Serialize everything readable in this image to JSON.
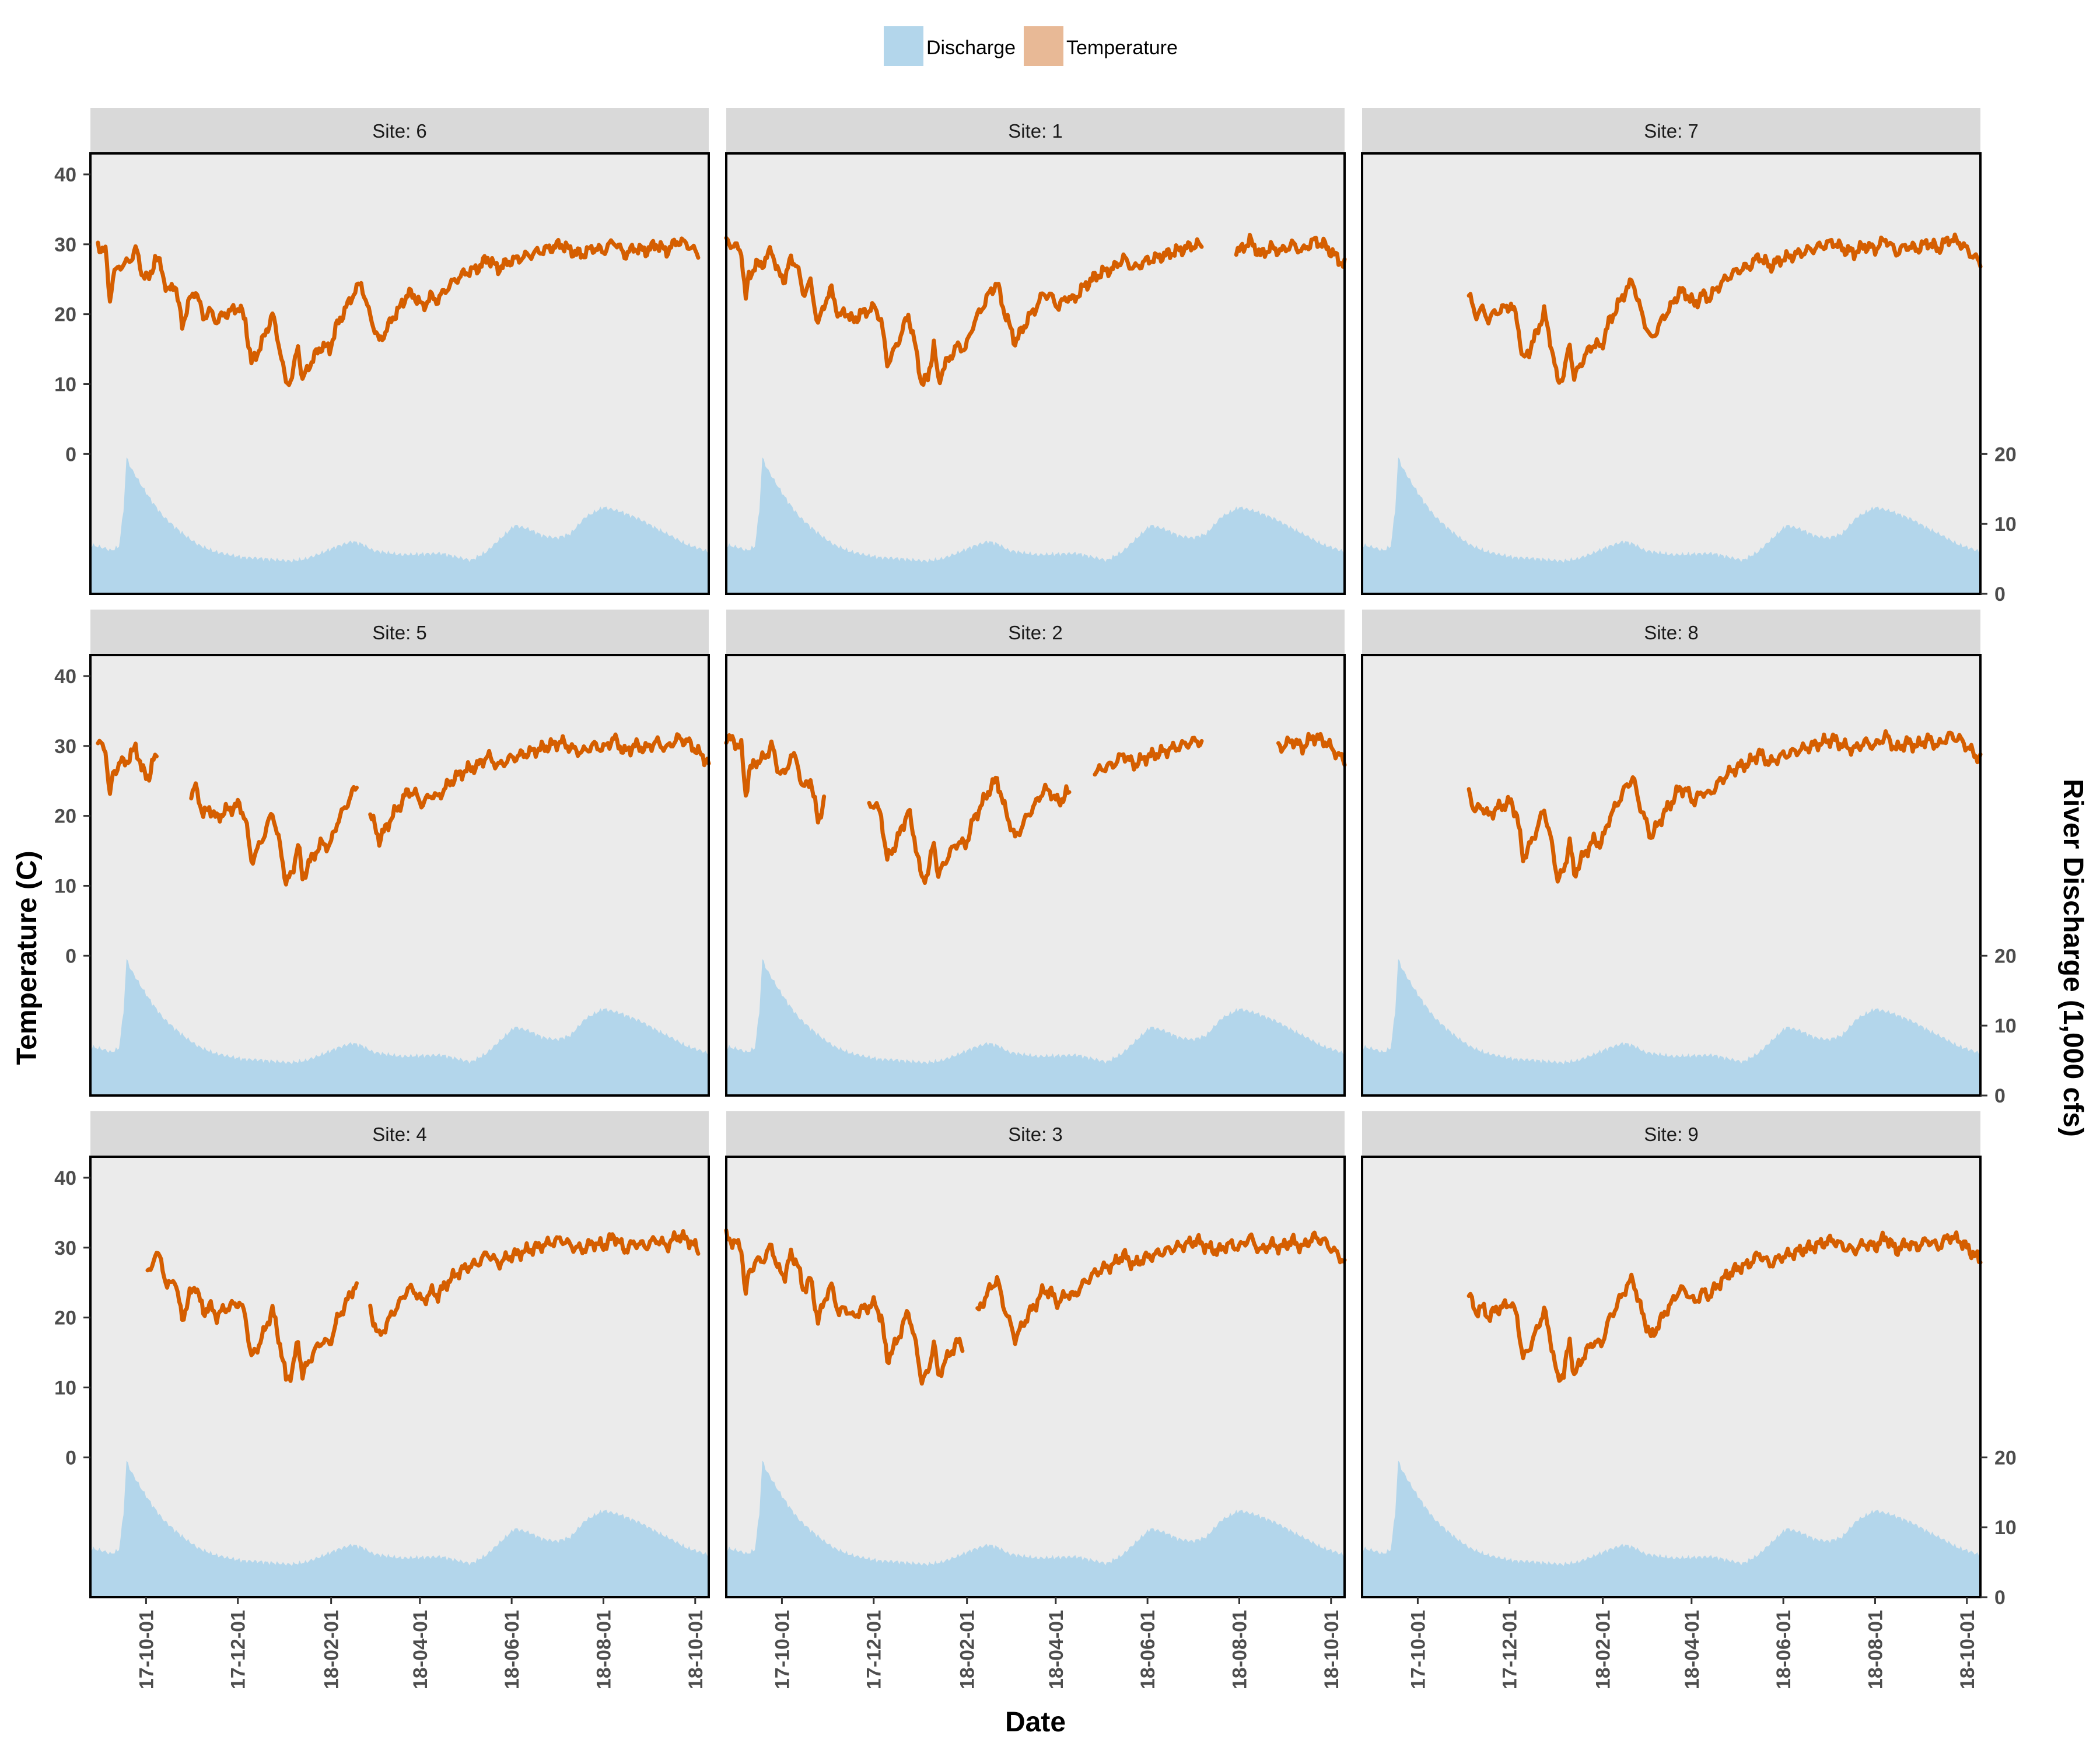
{
  "legend": {
    "items": [
      {
        "label": "Discharge",
        "color": "#b3d6eb"
      },
      {
        "label": "Temperature",
        "color": "#e8b996"
      }
    ]
  },
  "axes": {
    "xlabel": "Date",
    "ylabel_left": "Temperature (C)",
    "ylabel_right": "River Discharge (1,000 cfs)"
  },
  "colors": {
    "panel_bg": "#ebebeb",
    "strip_bg": "#d9d9d9",
    "temperature_line": "#d55e00",
    "discharge_area": "#b3d6eb",
    "frame": "#000000",
    "tick_text": "#4d4d4d"
  },
  "chart_data": {
    "type": "line+area",
    "facet_layout": "3x3",
    "legend_position": "top",
    "grid": false,
    "x_range": [
      "2017-08-25",
      "2018-10-10"
    ],
    "x_ticks": [
      "17-10-01",
      "17-12-01",
      "18-02-01",
      "18-04-01",
      "18-06-01",
      "18-08-01",
      "18-10-01"
    ],
    "temperature_axis": {
      "ticks": [
        0,
        10,
        20,
        30,
        40
      ],
      "ylim": [
        -20,
        43
      ]
    },
    "discharge_axis": {
      "ticks": [
        0,
        10,
        20
      ],
      "note": "shares panel with temperature; 0 cfs aligned at temperature -20, 20 (1,000 cfs) aligned at temperature 0"
    },
    "discharge_series": {
      "name": "Discharge",
      "unit": "1,000 cfs",
      "points": [
        [
          "2017-08-25",
          7.0
        ],
        [
          "2017-09-01",
          6.7
        ],
        [
          "2017-09-08",
          6.2
        ],
        [
          "2017-09-13",
          6.8
        ],
        [
          "2017-09-16",
          12
        ],
        [
          "2017-09-18",
          19.5
        ],
        [
          "2017-09-21",
          18
        ],
        [
          "2017-09-28",
          15.5
        ],
        [
          "2017-10-05",
          13.2
        ],
        [
          "2017-10-12",
          11.2
        ],
        [
          "2017-10-20",
          9.6
        ],
        [
          "2017-10-28",
          8.2
        ],
        [
          "2017-11-05",
          7.0
        ],
        [
          "2017-11-15",
          6.1
        ],
        [
          "2017-11-25",
          5.6
        ],
        [
          "2017-12-05",
          5.2
        ],
        [
          "2017-12-15",
          5.1
        ],
        [
          "2017-12-25",
          4.9
        ],
        [
          "2018-01-05",
          4.7
        ],
        [
          "2018-01-15",
          5.0
        ],
        [
          "2018-01-25",
          5.8
        ],
        [
          "2018-02-05",
          6.8
        ],
        [
          "2018-02-15",
          7.5
        ],
        [
          "2018-02-22",
          7.1
        ],
        [
          "2018-03-01",
          6.2
        ],
        [
          "2018-03-10",
          5.9
        ],
        [
          "2018-03-20",
          5.6
        ],
        [
          "2018-04-01",
          5.7
        ],
        [
          "2018-04-15",
          5.8
        ],
        [
          "2018-04-25",
          5.3
        ],
        [
          "2018-05-05",
          4.8
        ],
        [
          "2018-05-15",
          6.0
        ],
        [
          "2018-05-25",
          8.0
        ],
        [
          "2018-06-03",
          9.8
        ],
        [
          "2018-06-12",
          9.3
        ],
        [
          "2018-06-22",
          8.3
        ],
        [
          "2018-07-01",
          8.0
        ],
        [
          "2018-07-10",
          8.6
        ],
        [
          "2018-07-20",
          11.0
        ],
        [
          "2018-08-01",
          12.4
        ],
        [
          "2018-08-12",
          11.8
        ],
        [
          "2018-08-25",
          10.7
        ],
        [
          "2018-09-05",
          9.4
        ],
        [
          "2018-09-15",
          8.3
        ],
        [
          "2018-09-25",
          7.1
        ],
        [
          "2018-10-05",
          6.4
        ],
        [
          "2018-10-10",
          6.0
        ]
      ]
    },
    "temperature_base": {
      "name": "Temperature",
      "unit": "C",
      "points": [
        [
          "2017-08-25",
          30.5
        ],
        [
          "2017-09-01",
          29.5
        ],
        [
          "2017-09-04",
          29
        ],
        [
          "2017-09-07",
          22
        ],
        [
          "2017-09-09",
          25.5
        ],
        [
          "2017-09-14",
          27
        ],
        [
          "2017-09-20",
          27.5
        ],
        [
          "2017-09-24",
          29.5
        ],
        [
          "2017-09-28",
          26
        ],
        [
          "2017-10-03",
          25
        ],
        [
          "2017-10-07",
          28
        ],
        [
          "2017-10-11",
          27
        ],
        [
          "2017-10-15",
          23
        ],
        [
          "2017-10-20",
          24.5
        ],
        [
          "2017-10-25",
          18.5
        ],
        [
          "2017-10-30",
          22
        ],
        [
          "2017-11-03",
          23.5
        ],
        [
          "2017-11-08",
          19.5
        ],
        [
          "2017-11-12",
          20.5
        ],
        [
          "2017-11-17",
          19
        ],
        [
          "2017-11-22",
          20
        ],
        [
          "2017-11-27",
          20.5
        ],
        [
          "2017-12-02",
          21
        ],
        [
          "2017-12-06",
          19
        ],
        [
          "2017-12-10",
          13
        ],
        [
          "2017-12-14",
          14.5
        ],
        [
          "2017-12-19",
          17
        ],
        [
          "2017-12-24",
          20
        ],
        [
          "2017-12-29",
          15
        ],
        [
          "2018-01-02",
          10
        ],
        [
          "2018-01-06",
          11
        ],
        [
          "2018-01-10",
          15.5
        ],
        [
          "2018-01-13",
          10.5
        ],
        [
          "2018-01-17",
          12.5
        ],
        [
          "2018-01-21",
          14
        ],
        [
          "2018-01-26",
          15.5
        ],
        [
          "2018-01-31",
          15
        ],
        [
          "2018-02-05",
          18.5
        ],
        [
          "2018-02-10",
          20.5
        ],
        [
          "2018-02-16",
          23
        ],
        [
          "2018-02-21",
          24.5
        ],
        [
          "2018-02-25",
          21
        ],
        [
          "2018-03-01",
          18.5
        ],
        [
          "2018-03-05",
          16
        ],
        [
          "2018-03-09",
          17.5
        ],
        [
          "2018-03-14",
          19.5
        ],
        [
          "2018-03-19",
          21
        ],
        [
          "2018-03-24",
          23
        ],
        [
          "2018-03-29",
          22.5
        ],
        [
          "2018-04-03",
          21
        ],
        [
          "2018-04-08",
          22.5
        ],
        [
          "2018-04-13",
          22
        ],
        [
          "2018-04-18",
          23.5
        ],
        [
          "2018-04-25",
          25
        ],
        [
          "2018-05-02",
          26
        ],
        [
          "2018-05-09",
          26.5
        ],
        [
          "2018-05-16",
          28
        ],
        [
          "2018-05-23",
          26.5
        ],
        [
          "2018-05-30",
          27.5
        ],
        [
          "2018-06-06",
          28
        ],
        [
          "2018-06-13",
          28.5
        ],
        [
          "2018-06-20",
          29
        ],
        [
          "2018-06-27",
          29.5
        ],
        [
          "2018-07-04",
          30
        ],
        [
          "2018-07-11",
          29
        ],
        [
          "2018-07-18",
          28.5
        ],
        [
          "2018-07-25",
          29.5
        ],
        [
          "2018-08-01",
          29
        ],
        [
          "2018-08-08",
          30.5
        ],
        [
          "2018-08-15",
          28.5
        ],
        [
          "2018-08-22",
          29.5
        ],
        [
          "2018-08-29",
          29
        ],
        [
          "2018-09-05",
          30
        ],
        [
          "2018-09-12",
          29
        ],
        [
          "2018-09-19",
          30.5
        ],
        [
          "2018-09-26",
          30
        ],
        [
          "2018-10-03",
          28.5
        ],
        [
          "2018-10-10",
          27
        ]
      ]
    },
    "panels": [
      {
        "label": "Site: 6",
        "show_left_axis": true,
        "show_right_axis": false,
        "show_x_axis": false,
        "temp_offset": 0,
        "temp_segments": [
          [
            "2017-08-30",
            "2018-10-03"
          ]
        ]
      },
      {
        "label": "Site: 1",
        "show_left_axis": false,
        "show_right_axis": false,
        "show_x_axis": false,
        "temp_offset": 0,
        "temp_segments": [
          [
            "2017-08-25",
            "2018-07-07"
          ],
          [
            "2018-07-30",
            "2018-10-10"
          ]
        ]
      },
      {
        "label": "Site: 7",
        "show_left_axis": false,
        "show_right_axis": true,
        "show_x_axis": false,
        "temp_offset": 0.3,
        "temp_segments": [
          [
            "2017-11-04",
            "2018-10-10"
          ]
        ]
      },
      {
        "label": "Site: 5",
        "show_left_axis": true,
        "show_right_axis": false,
        "show_x_axis": false,
        "temp_offset": 0.6,
        "temp_segments": [
          [
            "2017-08-30",
            "2017-10-08"
          ],
          [
            "2017-10-31",
            "2018-02-18"
          ],
          [
            "2018-02-27",
            "2018-10-10"
          ]
        ]
      },
      {
        "label": "Site: 2",
        "show_left_axis": false,
        "show_right_axis": false,
        "show_x_axis": false,
        "temp_offset": 0.8,
        "temp_segments": [
          [
            "2017-08-25",
            "2017-10-29"
          ],
          [
            "2017-11-28",
            "2018-04-10"
          ],
          [
            "2018-04-27",
            "2018-07-07"
          ],
          [
            "2018-08-27",
            "2018-10-10"
          ]
        ]
      },
      {
        "label": "Site: 8",
        "show_left_axis": false,
        "show_right_axis": true,
        "show_x_axis": false,
        "temp_offset": 1.0,
        "temp_segments": [
          [
            "2017-11-04",
            "2018-10-10"
          ]
        ]
      },
      {
        "label": "Site: 4",
        "show_left_axis": true,
        "show_right_axis": false,
        "show_x_axis": true,
        "temp_offset": 1.2,
        "temp_segments": [
          [
            "2017-10-02",
            "2018-02-18"
          ],
          [
            "2018-02-27",
            "2018-10-03"
          ]
        ]
      },
      {
        "label": "Site: 3",
        "show_left_axis": false,
        "show_right_axis": false,
        "show_x_axis": true,
        "temp_offset": 1.0,
        "temp_segments": [
          [
            "2017-08-25",
            "2018-01-29"
          ],
          [
            "2018-02-08",
            "2018-10-10"
          ]
        ]
      },
      {
        "label": "Site: 9",
        "show_left_axis": false,
        "show_right_axis": true,
        "show_x_axis": true,
        "temp_offset": 1.1,
        "temp_segments": [
          [
            "2017-11-04",
            "2018-10-10"
          ]
        ]
      }
    ]
  }
}
